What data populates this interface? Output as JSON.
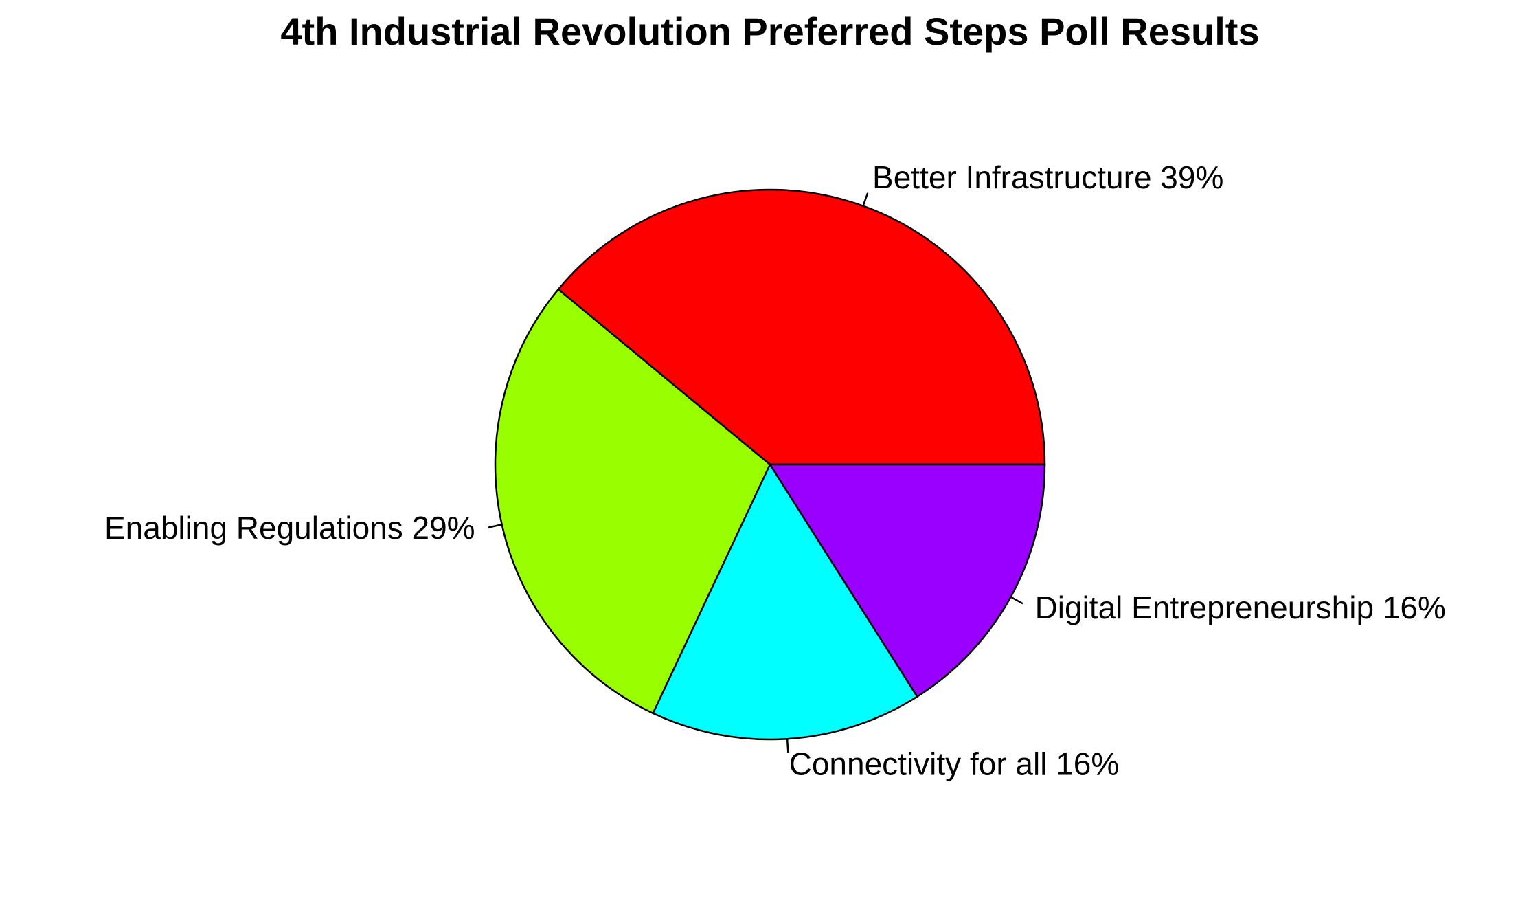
{
  "chart_data": {
    "type": "pie",
    "title": "4th Industrial Revolution Preferred Steps Poll Results",
    "direction": "counterclockwise",
    "slices": [
      {
        "label": "Better Infrastructure 39%",
        "category": "Better Infrastructure",
        "value": 39,
        "color": "#FF0000"
      },
      {
        "label": "Enabling Regulations 29%",
        "category": "Enabling Regulations",
        "value": 29,
        "color": "#99FF00"
      },
      {
        "label": "Connectivity for all 16%",
        "category": "Connectivity for all",
        "value": 16,
        "color": "#00FFFF"
      },
      {
        "label": "Digital Entrepreneurship 16%",
        "category": "Digital Entrepreneurship",
        "value": 16,
        "color": "#9900FF"
      }
    ]
  }
}
